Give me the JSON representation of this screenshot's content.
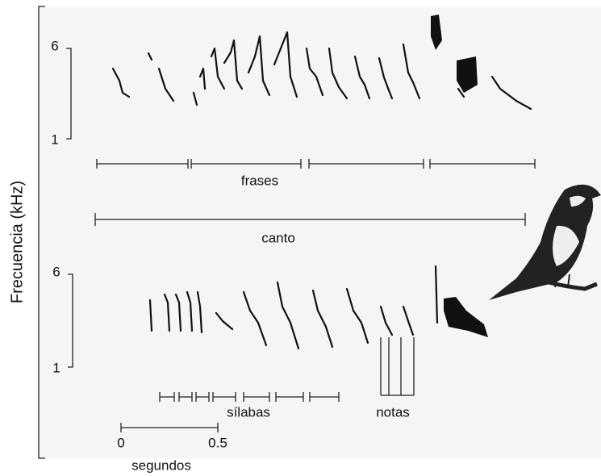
{
  "y_axis": {
    "label": "Frecuencia (kHz)",
    "panels": [
      {
        "ticks": [
          "6",
          "1"
        ]
      },
      {
        "ticks": [
          "6",
          "1"
        ]
      }
    ]
  },
  "labels": {
    "phrases": "frases",
    "song": "canto",
    "syllables": "sílabas",
    "notes": "notas"
  },
  "scale_bar": {
    "start": "0",
    "end": "0.5",
    "unit": "segundos"
  }
}
